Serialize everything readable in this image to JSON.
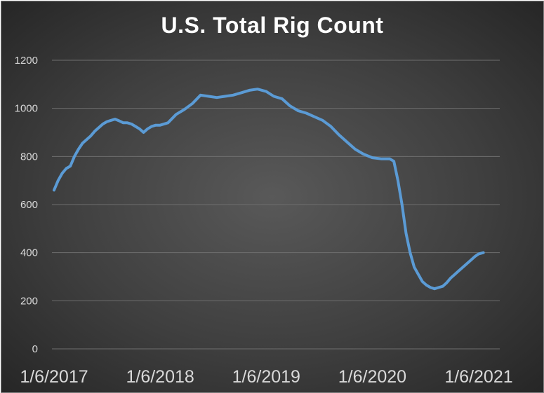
{
  "chart_data": {
    "type": "line",
    "title": "U.S. Total Rig Count",
    "xlabel": "",
    "ylabel": "",
    "ylim": [
      0,
      1200
    ],
    "y_ticks": [
      0,
      200,
      400,
      600,
      800,
      1000,
      1200
    ],
    "x_ticks": [
      "1/6/2017",
      "1/6/2018",
      "1/6/2019",
      "1/6/2020",
      "1/6/2021"
    ],
    "grid": true,
    "legend": "none",
    "line_color": "#5b9bd5",
    "series": [
      {
        "x": [
          "2017-01-06",
          "2017-01-20",
          "2017-02-03",
          "2017-02-17",
          "2017-03-03",
          "2017-03-17",
          "2017-03-31",
          "2017-04-14",
          "2017-04-28",
          "2017-05-12",
          "2017-05-26",
          "2017-06-09",
          "2017-06-23",
          "2017-07-07",
          "2017-07-21",
          "2017-08-04",
          "2017-08-18",
          "2017-09-01",
          "2017-09-15",
          "2017-09-29",
          "2017-10-13",
          "2017-10-27",
          "2017-11-10",
          "2017-11-24",
          "2017-12-08",
          "2017-12-22",
          "2018-01-06",
          "2018-02-02",
          "2018-03-02",
          "2018-03-30",
          "2018-04-27",
          "2018-05-25",
          "2018-06-22",
          "2018-07-20",
          "2018-08-17",
          "2018-09-14",
          "2018-10-12",
          "2018-11-09",
          "2018-12-07",
          "2019-01-06",
          "2019-02-01",
          "2019-03-01",
          "2019-03-29",
          "2019-04-26",
          "2019-05-24",
          "2019-06-21",
          "2019-07-19",
          "2019-08-16",
          "2019-09-13",
          "2019-10-11",
          "2019-11-08",
          "2019-12-06",
          "2020-01-06",
          "2020-02-07",
          "2020-03-06",
          "2020-03-20",
          "2020-04-03",
          "2020-04-17",
          "2020-05-01",
          "2020-05-15",
          "2020-05-29",
          "2020-06-12",
          "2020-06-26",
          "2020-07-10",
          "2020-07-24",
          "2020-08-07",
          "2020-08-21",
          "2020-09-04",
          "2020-09-18",
          "2020-10-02",
          "2020-10-16",
          "2020-10-30",
          "2020-11-13",
          "2020-11-27",
          "2020-12-11",
          "2020-12-25",
          "2021-01-06",
          "2021-01-22"
        ],
        "y": [
          660,
          700,
          730,
          750,
          760,
          800,
          830,
          855,
          870,
          885,
          905,
          920,
          935,
          945,
          950,
          955,
          948,
          940,
          940,
          935,
          925,
          915,
          900,
          915,
          925,
          930,
          930,
          940,
          975,
          995,
          1020,
          1055,
          1050,
          1045,
          1050,
          1055,
          1065,
          1075,
          1080,
          1070,
          1050,
          1040,
          1010,
          990,
          980,
          965,
          950,
          925,
          890,
          860,
          830,
          810,
          795,
          790,
          790,
          780,
          700,
          600,
          480,
          400,
          340,
          310,
          280,
          265,
          255,
          250,
          255,
          260,
          275,
          295,
          310,
          325,
          340,
          355,
          370,
          385,
          395,
          400
        ]
      }
    ]
  }
}
